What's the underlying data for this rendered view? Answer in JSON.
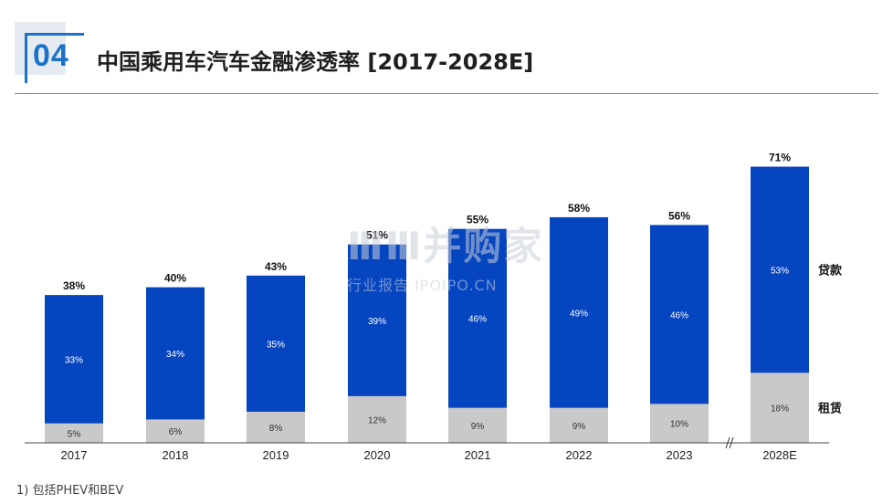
{
  "header": {
    "number": "04",
    "title": "中国乘用车汽车金融渗透率 [2017-2028E]"
  },
  "footnote": "1) 包括PHEV和BEV",
  "watermark": {
    "main": "ⅢⅢ并购家",
    "sub": "行业报告 IPOIPO.CN"
  },
  "colors": {
    "loan": "#0545c0",
    "lease": "#c9c9c9",
    "accent": "#1a73c8"
  },
  "chart_data": {
    "type": "bar",
    "stacked": true,
    "categories": [
      "2017",
      "2018",
      "2019",
      "2020",
      "2021",
      "2022",
      "2023",
      "2028E"
    ],
    "series": [
      {
        "name": "租赁",
        "values": [
          5,
          6,
          8,
          12,
          9,
          9,
          10,
          18
        ],
        "labels": [
          "5%",
          "6%",
          "8%",
          "12%",
          "9%",
          "9%",
          "10%",
          "18%"
        ],
        "color": "#c9c9c9"
      },
      {
        "name": "贷款",
        "values": [
          33,
          34,
          35,
          39,
          46,
          49,
          46,
          53
        ],
        "labels": [
          "33%",
          "34%",
          "35%",
          "39%",
          "46%",
          "49%",
          "46%",
          "53%"
        ],
        "color": "#0545c0"
      }
    ],
    "totals": [
      38,
      40,
      43,
      51,
      55,
      58,
      56,
      71
    ],
    "total_labels": [
      "38%",
      "40%",
      "43%",
      "51%",
      "55%",
      "58%",
      "56%",
      "71%"
    ],
    "axis_break_before": "2028E",
    "ylim": [
      0,
      75
    ],
    "grid": false
  }
}
